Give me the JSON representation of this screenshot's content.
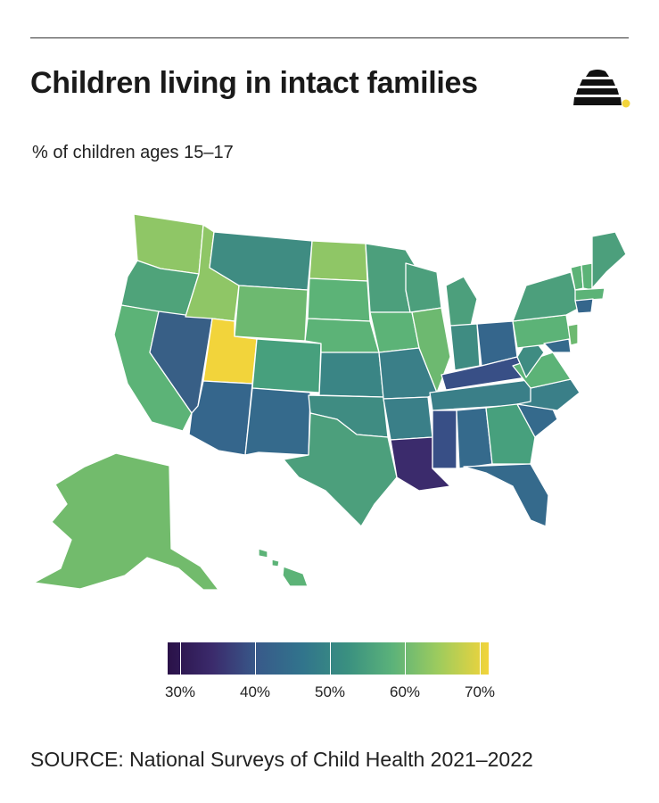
{
  "header": {
    "title": "Children living in intact families",
    "subtitle": "% of children ages 15–17",
    "logo_icon": "beehive-icon"
  },
  "map": {
    "color_scale": [
      "#2a1148",
      "#3b2b6c",
      "#385a8a",
      "#31748c",
      "#3a9080",
      "#5bb27a",
      "#9ccb5e",
      "#f2d43b"
    ],
    "highlight_states": {
      "Utah": "highest (~70%)",
      "Louisiana": "lowest (~30%)",
      "Mississippi": "low (~38%)",
      "Kentucky": "low (~40%)"
    }
  },
  "legend": {
    "labels": [
      "30%",
      "40%",
      "50%",
      "60%",
      "70%"
    ]
  },
  "footer": {
    "source": "SOURCE: National Surveys of Child Health 2021–2022"
  }
}
